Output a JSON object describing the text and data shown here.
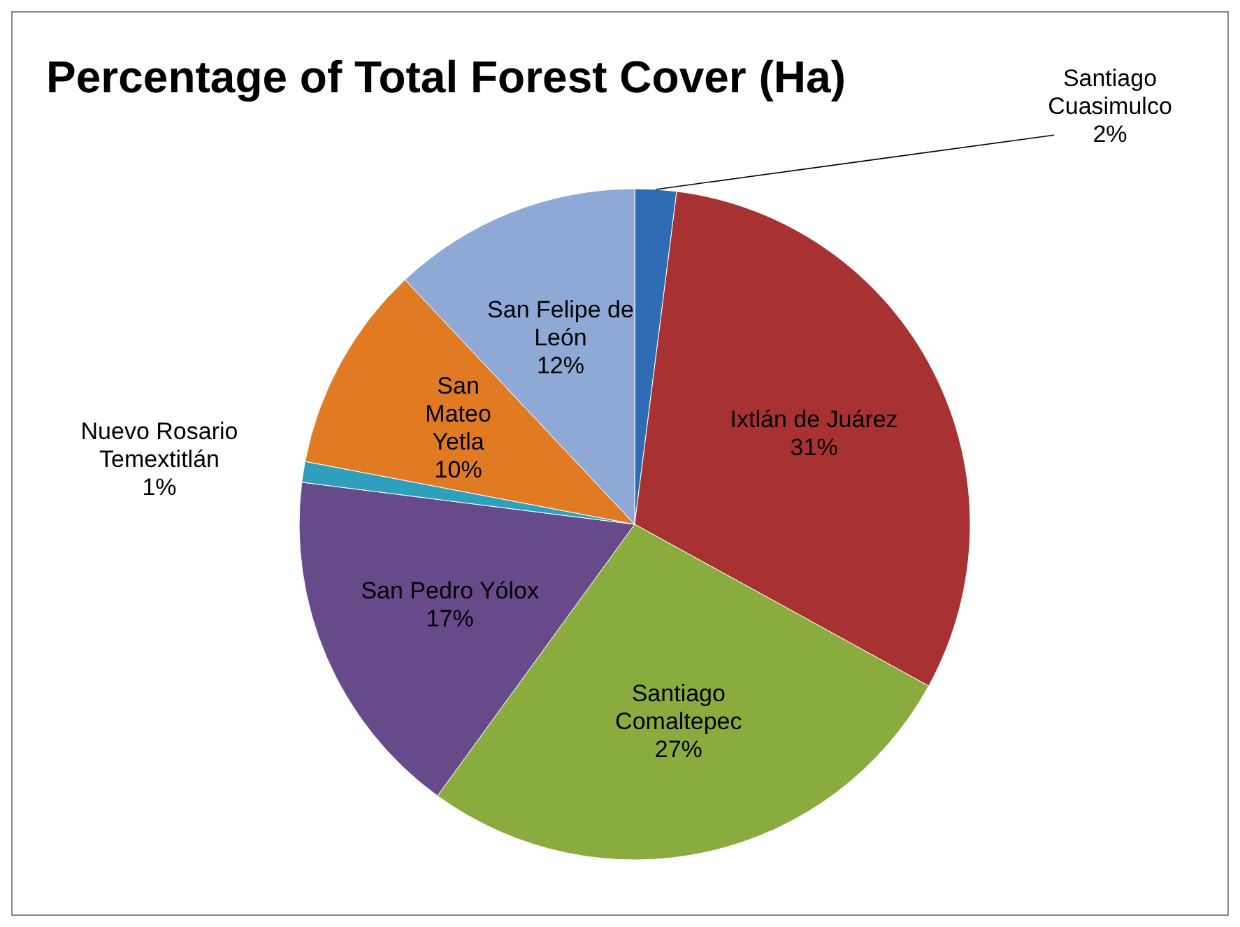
{
  "chart_data": {
    "type": "pie",
    "title": "Percentage of Total Forest Cover (Ha)",
    "categories": [
      "Santiago Cuasimulco",
      "Ixtlán de Juárez",
      "Santiago Comaltepec",
      "San Pedro Yólox",
      "Nuevo Rosario Temextitlán",
      "San Mateo Yetla",
      "San Felipe de León"
    ],
    "values": [
      2,
      31,
      27,
      17,
      1,
      10,
      12
    ],
    "colors": [
      "#2e6db4",
      "#a83232",
      "#8aac3e",
      "#674a8a",
      "#2ea0be",
      "#e07b24",
      "#8ea9d6"
    ],
    "value_labels": [
      "2%",
      "31%",
      "27%",
      "17%",
      "1%",
      "10%",
      "12%"
    ]
  }
}
